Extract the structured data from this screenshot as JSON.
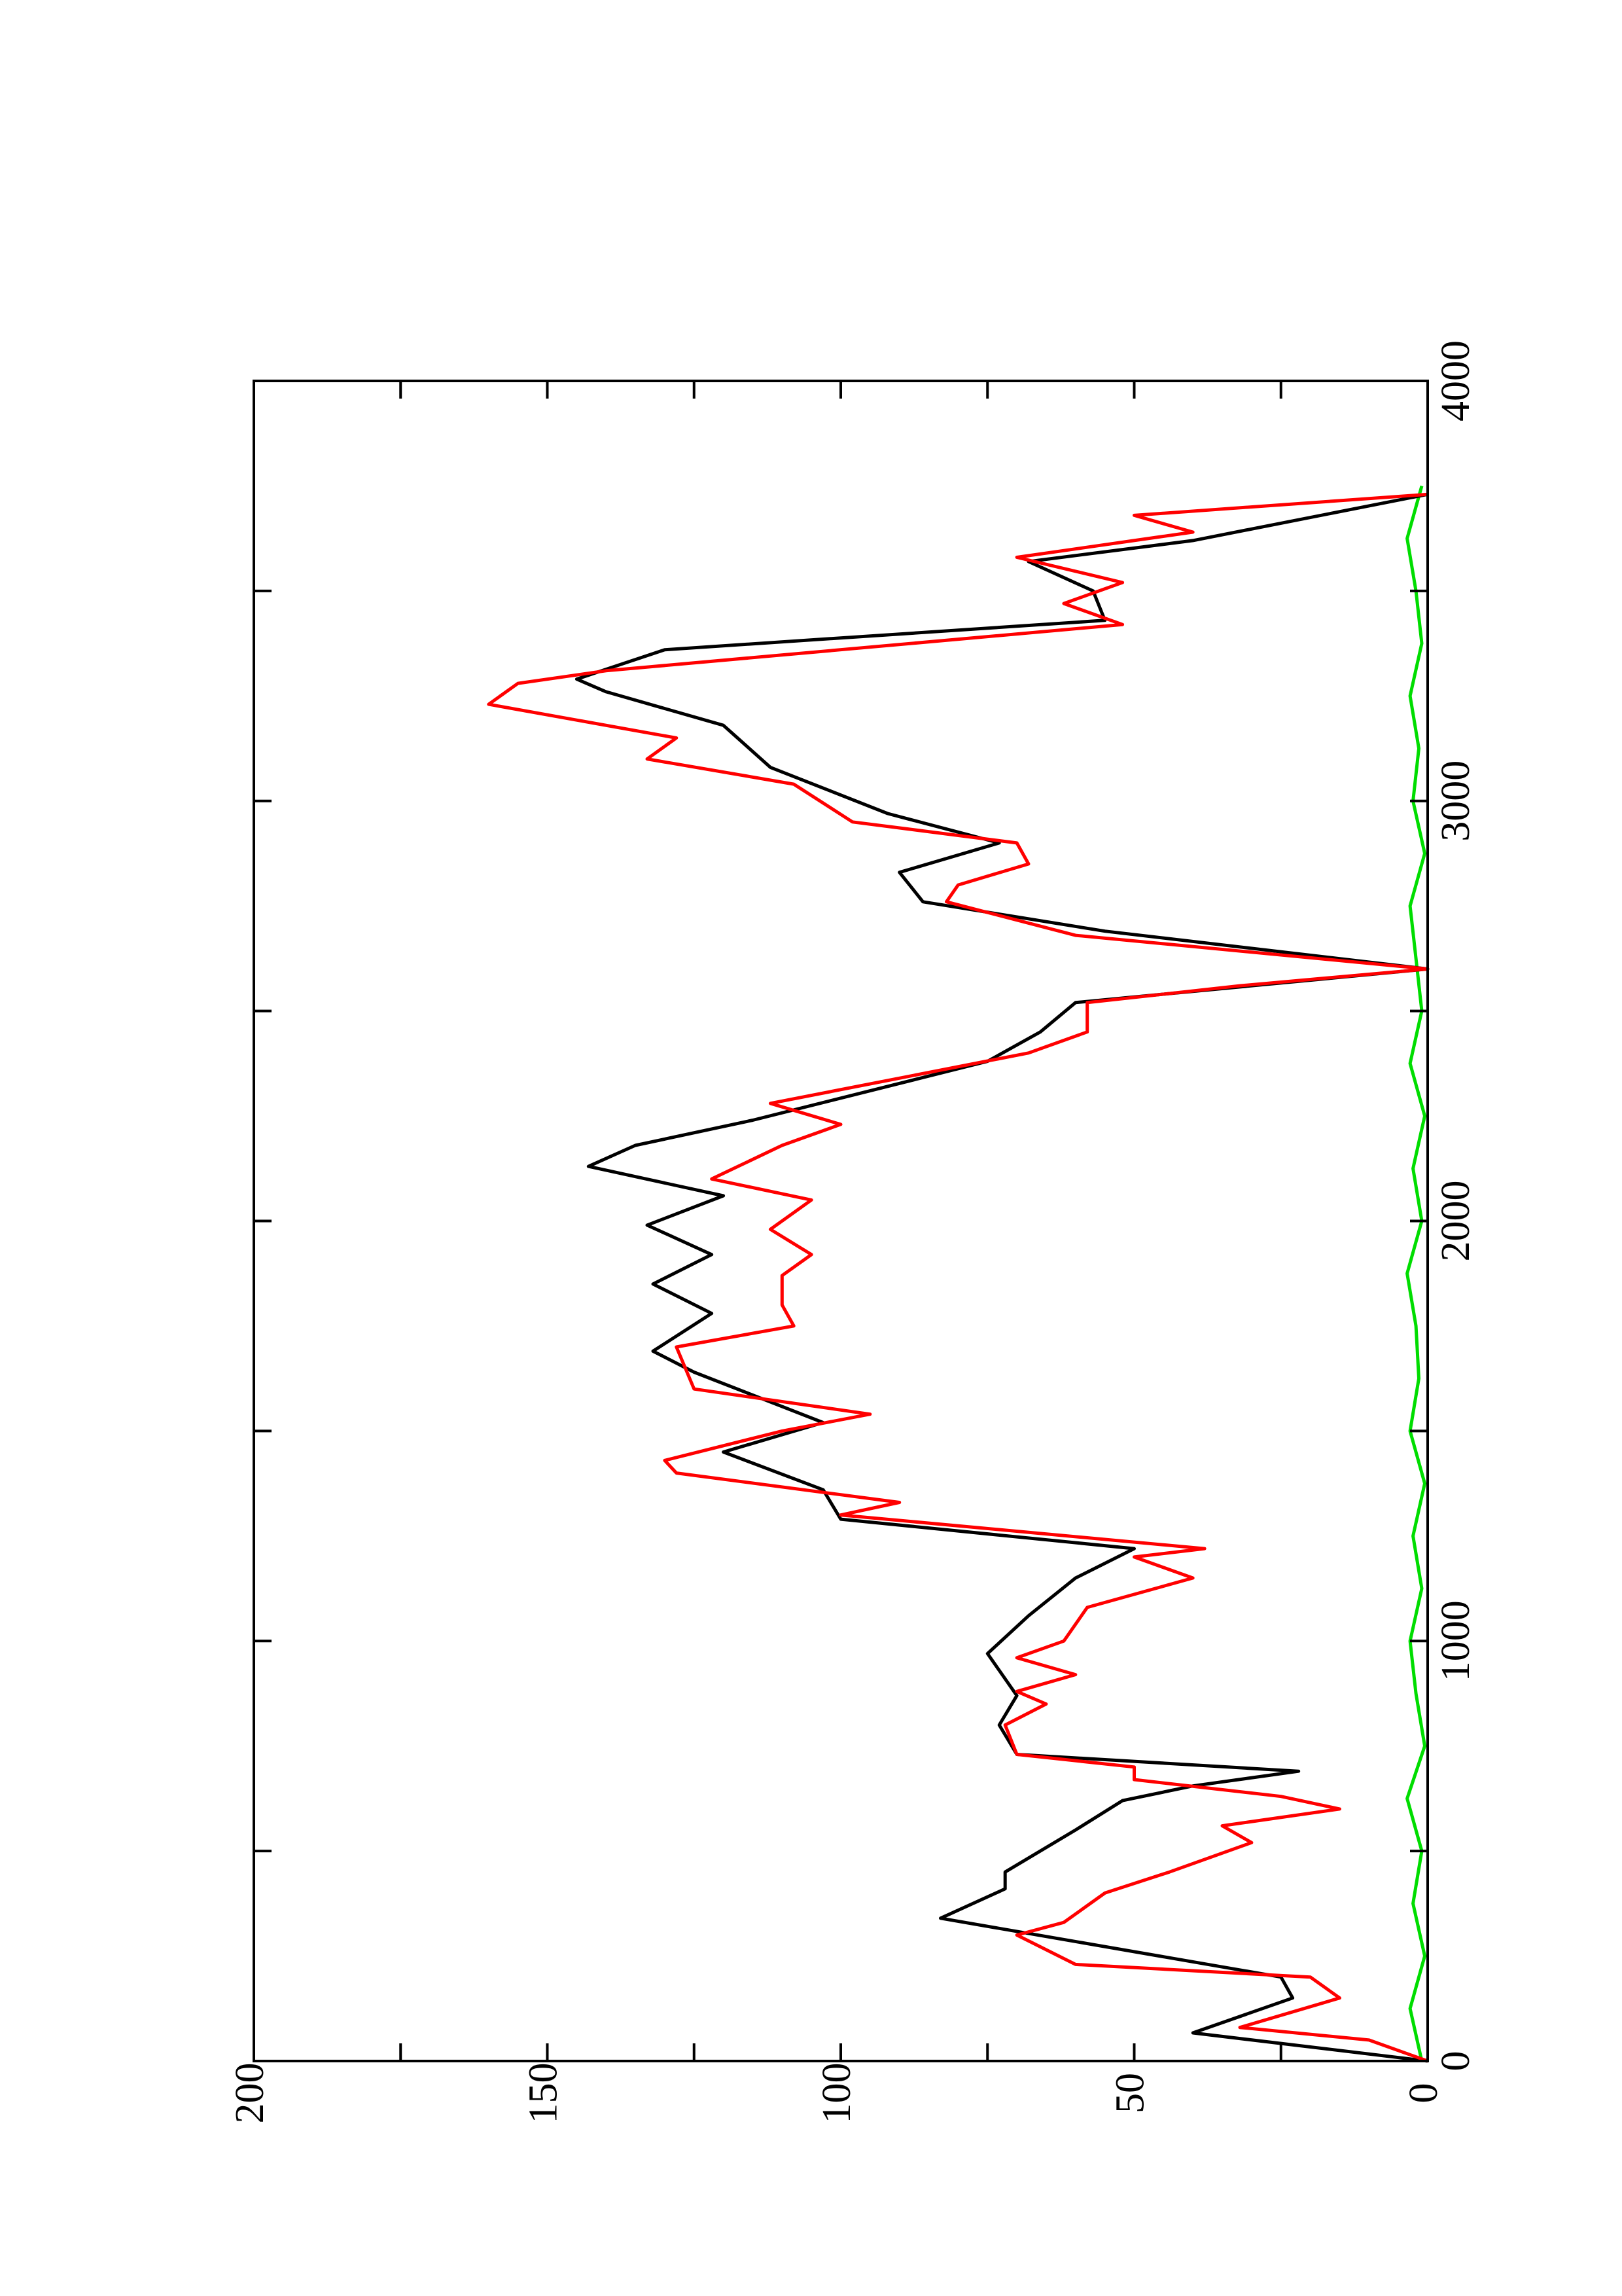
{
  "chart_data": {
    "type": "line",
    "xlim": [
      0,
      4000
    ],
    "ylim": [
      0,
      200
    ],
    "xticks": [
      0,
      1000,
      2000,
      3000,
      4000
    ],
    "xminorticks": [
      500,
      1500,
      2500,
      3500
    ],
    "yticks": [
      0,
      50,
      100,
      150,
      200
    ],
    "yminorticks": [
      25,
      75,
      125,
      175
    ],
    "orientation": "rotated",
    "series": [
      {
        "color": "#00dd00",
        "x": [
          0,
          125,
          250,
          375,
          500,
          625,
          750,
          875,
          1000,
          1125,
          1250,
          1375,
          1500,
          1625,
          1750,
          1875,
          2000,
          2125,
          2250,
          2375,
          2500,
          2625,
          2750,
          2875,
          3000,
          3125,
          3250,
          3375,
          3500,
          3625,
          3750
        ],
        "values": [
          1,
          3,
          0.5,
          2.5,
          1,
          3.5,
          0.5,
          2,
          3,
          1,
          2.5,
          0.5,
          3,
          1.5,
          2,
          3.5,
          1,
          2.5,
          0.5,
          3,
          1,
          2,
          3,
          0.5,
          2.5,
          1.5,
          3,
          1,
          2,
          3.5,
          1
        ]
      },
      {
        "color": "#000000",
        "x": [
          0,
          67,
          150,
          200,
          340,
          410,
          450,
          550,
          620,
          655,
          690,
          730,
          800,
          870,
          970,
          1060,
          1150,
          1220,
          1290,
          1360,
          1450,
          1520,
          1640,
          1690,
          1780,
          1850,
          1920,
          1990,
          2060,
          2130,
          2180,
          2240,
          2380,
          2450,
          2520,
          2600,
          2690,
          2760,
          2830,
          2900,
          2970,
          3080,
          3180,
          3260,
          3290,
          3360,
          3430,
          3500,
          3570,
          3620,
          3730
        ],
        "values": [
          0,
          40,
          23,
          25,
          83,
          72,
          72,
          60,
          52,
          40,
          22,
          70,
          73,
          70,
          75,
          68,
          60,
          50,
          100,
          103,
          120,
          103,
          125,
          132,
          122,
          132,
          122,
          133,
          120,
          143,
          135,
          115,
          75,
          66,
          60,
          0,
          55,
          86,
          90,
          73,
          92,
          112,
          120,
          140,
          145,
          130,
          55,
          57,
          68,
          40,
          0
        ]
      },
      {
        "color": "#ff0000",
        "x": [
          0,
          50,
          80,
          150,
          200,
          230,
          300,
          330,
          400,
          450,
          520,
          560,
          600,
          630,
          670,
          700,
          730,
          800,
          850,
          880,
          920,
          960,
          1000,
          1080,
          1150,
          1200,
          1220,
          1300,
          1330,
          1400,
          1430,
          1500,
          1540,
          1600,
          1700,
          1750,
          1800,
          1870,
          1920,
          1980,
          2050,
          2100,
          2180,
          2230,
          2280,
          2400,
          2450,
          2520,
          2560,
          2600,
          2680,
          2760,
          2800,
          2850,
          2900,
          2950,
          3040,
          3100,
          3150,
          3230,
          3280,
          3310,
          3420,
          3470,
          3520,
          3580,
          3640,
          3680,
          3730
        ],
        "values": [
          0,
          10,
          32,
          15,
          20,
          60,
          70,
          62,
          55,
          44,
          30,
          35,
          15,
          25,
          50,
          50,
          70,
          72,
          65,
          70,
          60,
          70,
          62,
          58,
          40,
          50,
          38,
          100,
          90,
          128,
          130,
          110,
          95,
          125,
          128,
          108,
          110,
          110,
          105,
          112,
          105,
          122,
          110,
          100,
          112,
          68,
          58,
          58,
          32,
          0,
          60,
          82,
          80,
          68,
          70,
          98,
          108,
          133,
          128,
          160,
          155,
          140,
          52,
          62,
          52,
          70,
          40,
          50,
          0
        ]
      }
    ]
  }
}
